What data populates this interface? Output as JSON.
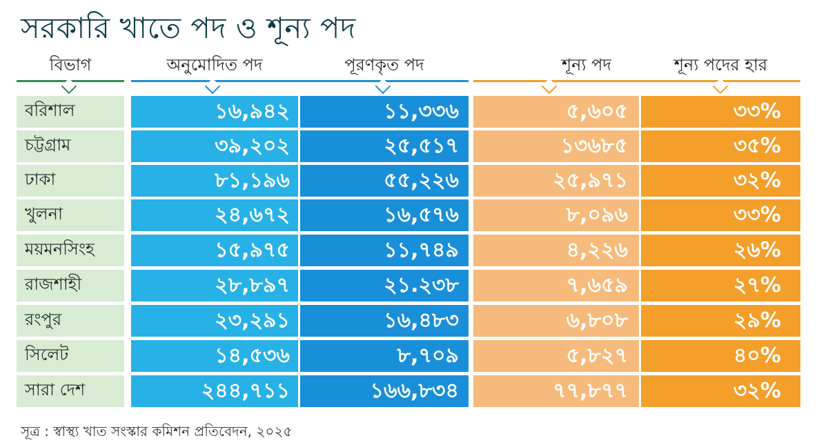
{
  "chart_data": {
    "type": "table",
    "title": "সরকারি খাতে পদ ও শূন্য পদ",
    "columns": [
      "বিভাগ",
      "অনুমোদিত পদ",
      "পূরণকৃত পদ",
      "শূন্য পদ",
      "শূন্য পদের হার"
    ],
    "rows": [
      [
        "বরিশাল",
        "১৬,৯৪২",
        "১১,৩৩৬",
        "৫,৬০৫",
        "৩৩%"
      ],
      [
        "চট্টগ্রাম",
        "৩৯,২০২",
        "২৫,৫১৭",
        "১৩৬৮৫",
        "৩৫%"
      ],
      [
        "ঢাকা",
        "৮১,১৯৬",
        "৫৫,২২৬",
        "২৫,৯৭১",
        "৩২%"
      ],
      [
        "খুলনা",
        "২৪,৬৭২",
        "১৬,৫৭৬",
        "৮,০৯৬",
        "৩৩%"
      ],
      [
        "ময়মনসিংহ",
        "১৫,৯৭৫",
        "১১,৭৪৯",
        "৪,২২৬",
        "২৬%"
      ],
      [
        "রাজশাহী",
        "২৮,৮৯৭",
        "২১.২৩৮",
        "৭,৬৫৯",
        "২৭%"
      ],
      [
        "রংপুর",
        "২৩,২৯১",
        "১৬,৪৮৩",
        "৬,৮০৮",
        "২৯%"
      ],
      [
        "সিলেট",
        "১৪,৫৩৬",
        "৮,৭০৯",
        "৫,৮২৭",
        "৪০%"
      ],
      [
        "সারা দেশ",
        "২৪৪,৭১১",
        "১৬৬,৮৩৪",
        "৭৭,৮৭৭",
        "৩২%"
      ]
    ],
    "source": "সূত্র : স্বাস্থ্য খাত সংস্কার কমিশন প্রতিবেদন, ২০২৫"
  },
  "colors": {
    "division": "#d7ecd2",
    "approved": "#27b1e6",
    "filled": "#1a8fd9",
    "vacant": "#f6bb7c",
    "vacancy_rate": "#f39f2a",
    "header_line_blue": "#1f8fd6",
    "header_line_green": "#2e8b57",
    "header_line_orange": "#f39f2a",
    "title": "#0f3d4a"
  }
}
